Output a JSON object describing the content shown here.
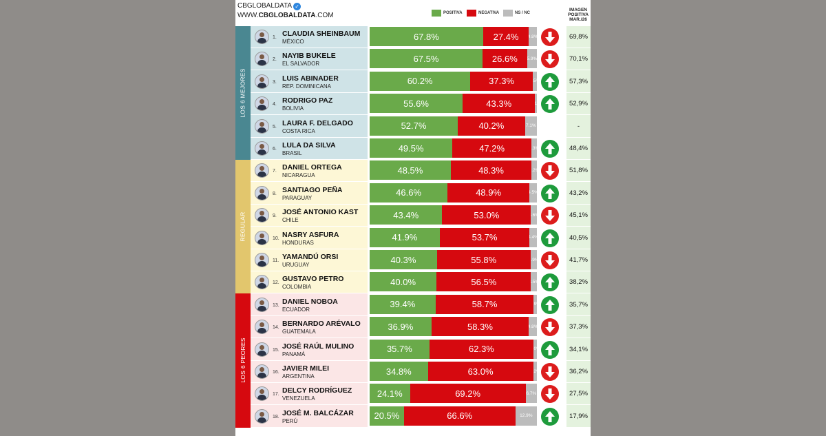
{
  "header": {
    "brand": "CBGLOBALDATA",
    "website_prefix": "WWW.",
    "website_bold": "CBGLOBALDATA",
    "website_suffix": ".COM",
    "image_column_title": [
      "IMAGEN",
      "POSITIVA",
      "MAR./26"
    ]
  },
  "colors": {
    "positive": "#6aaa4a",
    "negative": "#d6090f",
    "ns": "#bcbcbc",
    "arrow_up": "#1e9b3c",
    "arrow_down": "#dc1c1c",
    "group_best_strip": "#4a8791",
    "group_best_bg": "#cfe3e7",
    "group_regular_strip": "#e2c66d",
    "group_regular_bg": "#fdf7d6",
    "group_worst_strip": "#d6090f",
    "group_worst_bg": "#fbe6e6"
  },
  "chart_data": {
    "type": "bar",
    "stacked": true,
    "orientation": "horizontal",
    "legend": [
      "POSITIVA",
      "NEGATIVA",
      "NS / NC"
    ],
    "legend_placement": "top",
    "groups": [
      {
        "label": "LOS 6 MEJORES",
        "ranks": [
          1,
          6
        ]
      },
      {
        "label": "REGULAR",
        "ranks": [
          7,
          12
        ]
      },
      {
        "label": "LOS 6 PEORES",
        "ranks": [
          13,
          18
        ]
      }
    ],
    "rows": [
      {
        "rank": "1.",
        "name": "CLAUDIA SHEINBAUM",
        "country": "MÉXICO",
        "positive": 67.8,
        "negative": 27.4,
        "ns": 4.8,
        "pos_label": "67.8%",
        "neg_label": "27.4%",
        "ns_label": "4.8%",
        "trend": "down",
        "image": "69,8%"
      },
      {
        "rank": "2.",
        "name": "NAYIB BUKELE",
        "country": "EL SALVADOR",
        "positive": 67.5,
        "negative": 26.6,
        "ns": 5.9,
        "pos_label": "67.5%",
        "neg_label": "26.6%",
        "ns_label": "5.9%",
        "trend": "down",
        "image": "70,1%"
      },
      {
        "rank": "3.",
        "name": "LUIS ABINADER",
        "country": "REP. DOMINICANA",
        "positive": 60.2,
        "negative": 37.3,
        "ns": 2.5,
        "pos_label": "60.2%",
        "neg_label": "37.3%",
        "ns_label": "2.5%",
        "trend": "up",
        "image": "57,3%"
      },
      {
        "rank": "4.",
        "name": "RODRIGO PAZ",
        "country": "BOLIVIA",
        "positive": 55.6,
        "negative": 43.3,
        "ns": 1.1,
        "pos_label": "55.6%",
        "neg_label": "43.3%",
        "ns_label": "1.1%",
        "trend": "up",
        "image": "52,9%"
      },
      {
        "rank": "5.",
        "name": "LAURA F. DELGADO",
        "country": "COSTA RICA",
        "positive": 52.7,
        "negative": 40.2,
        "ns": 7.1,
        "pos_label": "52.7%",
        "neg_label": "40.2%",
        "ns_label": "7.1%",
        "trend": "none",
        "image": "-"
      },
      {
        "rank": "6.",
        "name": "LULA DA SILVA",
        "country": "BRASIL",
        "positive": 49.5,
        "negative": 47.2,
        "ns": 3.3,
        "pos_label": "49.5%",
        "neg_label": "47.2%",
        "ns_label": "3.3%",
        "trend": "up",
        "image": "48,4%"
      },
      {
        "rank": "7.",
        "name": "DANIEL ORTEGA",
        "country": "NICARAGUA",
        "positive": 48.5,
        "negative": 48.3,
        "ns": 3.2,
        "pos_label": "48.5%",
        "neg_label": "48.3%",
        "ns_label": "3.2%",
        "trend": "down",
        "image": "51,8%"
      },
      {
        "rank": "8.",
        "name": "SANTIAGO PEÑA",
        "country": "PARAGUAY",
        "positive": 46.6,
        "negative": 48.9,
        "ns": 4.5,
        "pos_label": "46.6%",
        "neg_label": "48.9%",
        "ns_label": "4.5%",
        "trend": "up",
        "image": "43,2%"
      },
      {
        "rank": "9.",
        "name": "JOSÉ ANTONIO KAST",
        "country": "CHILE",
        "positive": 43.4,
        "negative": 53.0,
        "ns": 3.6,
        "pos_label": "43.4%",
        "neg_label": "53.0%",
        "ns_label": "3.6%",
        "trend": "down",
        "image": "45,1%"
      },
      {
        "rank": "10.",
        "name": "NASRY ASFURA",
        "country": "HONDURAS",
        "positive": 41.9,
        "negative": 53.7,
        "ns": 4.4,
        "pos_label": "41.9%",
        "neg_label": "53.7%",
        "ns_label": "4.4%",
        "trend": "up",
        "image": "40,5%"
      },
      {
        "rank": "11.",
        "name": "YAMANDÚ ORSI",
        "country": "URUGUAY",
        "positive": 40.3,
        "negative": 55.8,
        "ns": 3.9,
        "pos_label": "40.3%",
        "neg_label": "55.8%",
        "ns_label": "3.9%",
        "trend": "down",
        "image": "41,7%"
      },
      {
        "rank": "12.",
        "name": "GUSTAVO PETRO",
        "country": "COLOMBIA",
        "positive": 40.0,
        "negative": 56.5,
        "ns": 3.5,
        "pos_label": "40.0%",
        "neg_label": "56.5%",
        "ns_label": "3.5%",
        "trend": "up",
        "image": "38,2%"
      },
      {
        "rank": "13.",
        "name": "DANIEL NOBOA",
        "country": "ECUADOR",
        "positive": 39.4,
        "negative": 58.7,
        "ns": 1.9,
        "pos_label": "39.4%",
        "neg_label": "58.7%",
        "ns_label": "1.9%",
        "trend": "up",
        "image": "35,7%"
      },
      {
        "rank": "14.",
        "name": "BERNARDO ARÉVALO",
        "country": "GUATEMALA",
        "positive": 36.9,
        "negative": 58.3,
        "ns": 4.8,
        "pos_label": "36.9%",
        "neg_label": "58.3%",
        "ns_label": "4.8%",
        "trend": "down",
        "image": "37,3%"
      },
      {
        "rank": "15.",
        "name": "JOSÉ RAÚL MULINO",
        "country": "PANAMÁ",
        "positive": 35.7,
        "negative": 62.3,
        "ns": 2.0,
        "pos_label": "35.7%",
        "neg_label": "62.3%",
        "ns_label": "2.0%",
        "trend": "up",
        "image": "34,1%"
      },
      {
        "rank": "16.",
        "name": "JAVIER MILEI",
        "country": "ARGENTINA",
        "positive": 34.8,
        "negative": 63.0,
        "ns": 2.2,
        "pos_label": "34.8%",
        "neg_label": "63.0%",
        "ns_label": "2.2%",
        "trend": "down",
        "image": "36,2%"
      },
      {
        "rank": "17.",
        "name": "DELCY RODRÍGUEZ",
        "country": "VENEZUELA",
        "positive": 24.1,
        "negative": 69.2,
        "ns": 6.7,
        "pos_label": "24.1%",
        "neg_label": "69.2%",
        "ns_label": "6.7%",
        "trend": "down",
        "image": "27,5%"
      },
      {
        "rank": "18.",
        "name": "JOSÉ M. BALCÁZAR",
        "country": "PERÚ",
        "positive": 20.5,
        "negative": 66.6,
        "ns": 12.9,
        "pos_label": "20.5%",
        "neg_label": "66.6%",
        "ns_label": "12.9%",
        "trend": "up",
        "image": "17,9%"
      }
    ]
  }
}
